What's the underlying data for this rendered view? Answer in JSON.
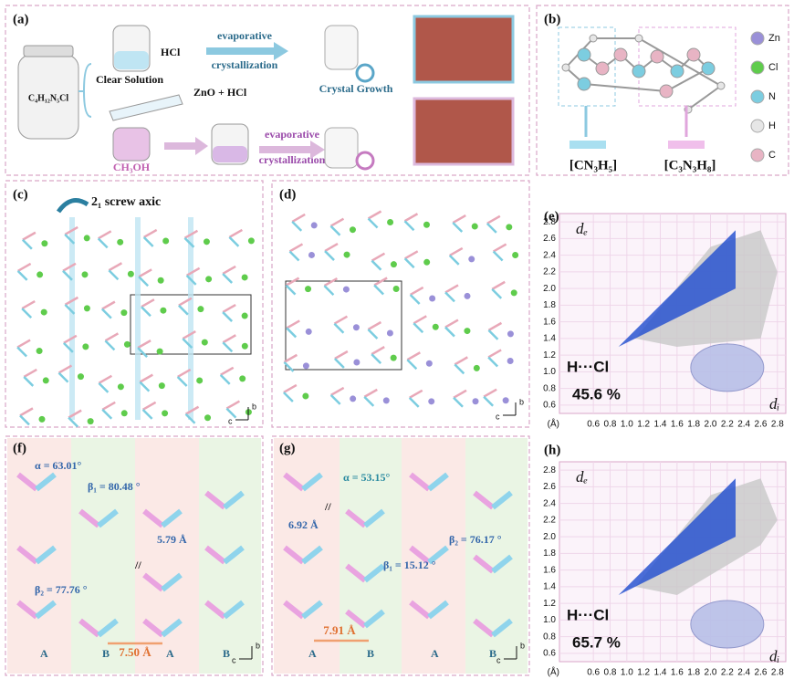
{
  "a": {
    "label": "(a)",
    "precursor": "C₄H₁₂N₅Cl",
    "acid": "HCl",
    "solution": "Clear Solution",
    "step1": [
      "evaporative",
      "crystallization"
    ],
    "growth": "Crystal Growth",
    "reagent": "ZnO + HCl",
    "solvent": "CH₃OH",
    "step2": [
      "evaporative",
      "crystallization"
    ]
  },
  "b": {
    "label": "(b)",
    "legend": [
      "Zn",
      "Cl",
      "N",
      "H",
      "C"
    ],
    "fragments": [
      "[CN₃H₅]",
      "[C₃N₃H₈]"
    ]
  },
  "c": {
    "label": "(c)",
    "axis_note": "2₁ screw axic",
    "axes": [
      "b",
      "c"
    ]
  },
  "d": {
    "label": "(d)",
    "axes": [
      "b",
      "c"
    ]
  },
  "e": {
    "label": "(e)",
    "y_label": "dₑ",
    "x_label": "dᵢ",
    "unit": "(Å)",
    "contact": "H···Cl",
    "percent": "45.6 %",
    "xlim": [
      0.5,
      2.9
    ],
    "ylim": [
      0.5,
      2.9
    ],
    "xticks": [
      0.6,
      0.8,
      {
        "value": 1.0,
        "label": "1.0"
      },
      1.2,
      1.4,
      1.6,
      1.8,
      {
        "value": 2.0,
        "label": "2.0"
      },
      2.2,
      2.4,
      2.6,
      2.8
    ],
    "yticks": [
      0.6,
      0.8,
      {
        "value": 1.0,
        "label": "1.0"
      },
      1.2,
      1.4,
      1.6,
      1.8,
      {
        "value": 2.0,
        "label": "2.0"
      },
      2.2,
      2.4,
      2.6,
      2.8
    ]
  },
  "f": {
    "label": "(f)",
    "alpha": "α = 63.01°",
    "beta1": "β₁ = 80.48 °",
    "distance": "5.79 Å",
    "parallel": "//",
    "beta2": "β₂ = 77.76 °",
    "spacing": "7.50 Å",
    "columns": [
      "A",
      "B",
      "A",
      "B"
    ],
    "axes": [
      "b",
      "c"
    ]
  },
  "g": {
    "label": "(g)",
    "alpha": "α = 53.15°",
    "distance": "6.92 Å",
    "parallel": "//",
    "beta2": "β₂ = 76.17 °",
    "beta1": "β₁ = 15.12 °",
    "spacing": "7.91 Å",
    "columns": [
      "A",
      "B",
      "A",
      "B"
    ],
    "axes": [
      "b",
      "c"
    ]
  },
  "h": {
    "label": "(h)",
    "y_label": "dₑ",
    "x_label": "dᵢ",
    "unit": "(Å)",
    "contact": "H···Cl",
    "percent": "65.7 %",
    "xlim": [
      0.5,
      2.9
    ],
    "ylim": [
      0.5,
      2.9
    ],
    "xticks": [
      0.6,
      0.8,
      {
        "value": 1.0,
        "label": "1.0"
      },
      1.2,
      1.4,
      1.6,
      1.8,
      {
        "value": 2.0,
        "label": "2.0"
      },
      2.2,
      2.4,
      2.6,
      2.8
    ],
    "yticks": [
      0.6,
      0.8,
      {
        "value": 1.0,
        "label": "1.0"
      },
      1.2,
      1.4,
      1.6,
      1.8,
      {
        "value": 2.0,
        "label": "2.0"
      },
      2.2,
      2.4,
      2.6,
      2.8
    ]
  }
}
